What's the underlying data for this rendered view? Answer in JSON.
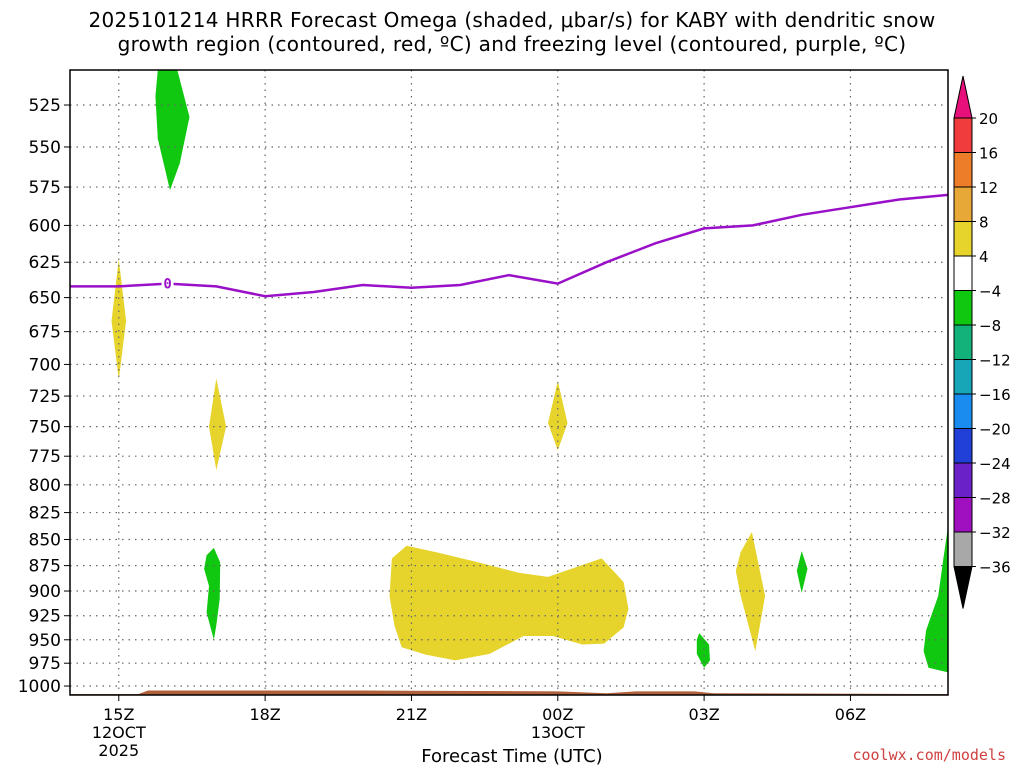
{
  "title": {
    "line1": "2025101214 HRRR Forecast Omega (shaded, μbar/s) for KABY with dendritic snow",
    "line2": "growth region (contoured, red, ºC) and freezing level (contoured, purple, ºC)"
  },
  "watermark": "coolwx.com/models",
  "chart_data": {
    "type": "contour",
    "xlabel": "Forecast Time (UTC)",
    "ylabel": "",
    "x_ticks": [
      {
        "hour": 0,
        "label": "15Z",
        "sub": [
          "12OCT",
          "2025"
        ]
      },
      {
        "hour": 3,
        "label": "18Z",
        "sub": []
      },
      {
        "hour": 6,
        "label": "21Z",
        "sub": []
      },
      {
        "hour": 9,
        "label": "00Z",
        "sub": [
          "13OCT"
        ]
      },
      {
        "hour": 12,
        "label": "03Z",
        "sub": []
      },
      {
        "hour": 15,
        "label": "06Z",
        "sub": []
      }
    ],
    "xlim": [
      -1,
      17
    ],
    "ylim_hPa": [
      1010,
      505
    ],
    "y_ticks": [
      525,
      550,
      575,
      600,
      625,
      650,
      675,
      700,
      725,
      750,
      775,
      800,
      825,
      850,
      875,
      900,
      925,
      950,
      975,
      1000
    ],
    "grid": true,
    "colorbar": {
      "labels": [
        "20",
        "16",
        "12",
        "8",
        "4",
        "−4",
        "−8",
        "−12",
        "−16",
        "−20",
        "−24",
        "−28",
        "−32",
        "−36"
      ],
      "bins": [
        {
          "range": [
            20,
            99
          ],
          "color": "#e8107a"
        },
        {
          "range": [
            16,
            20
          ],
          "color": "#f03c3c"
        },
        {
          "range": [
            12,
            16
          ],
          "color": "#ee7d2a"
        },
        {
          "range": [
            8,
            12
          ],
          "color": "#e8a838"
        },
        {
          "range": [
            4,
            8
          ],
          "color": "#e6d42c"
        },
        {
          "range": [
            -4,
            4
          ],
          "color": "#ffffff"
        },
        {
          "range": [
            -8,
            -4
          ],
          "color": "#10c810"
        },
        {
          "range": [
            -12,
            -8
          ],
          "color": "#12b27a"
        },
        {
          "range": [
            -16,
            -12
          ],
          "color": "#16a6b8"
        },
        {
          "range": [
            -20,
            -16
          ],
          "color": "#1a8cf0"
        },
        {
          "range": [
            -24,
            -20
          ],
          "color": "#2040d8"
        },
        {
          "range": [
            -28,
            -24
          ],
          "color": "#6a22c8"
        },
        {
          "range": [
            -32,
            -28
          ],
          "color": "#a010c0"
        },
        {
          "range": [
            -36,
            -32
          ],
          "color": "#a8a8a8"
        },
        {
          "range": [
            -99,
            -36
          ],
          "color": "#000000"
        }
      ]
    },
    "freezing_level": {
      "label": "0",
      "label_at": [
        1.0,
        640
      ],
      "color": "#9a10c8",
      "points": [
        [
          -1,
          642
        ],
        [
          0,
          642
        ],
        [
          1,
          640
        ],
        [
          2,
          642
        ],
        [
          3,
          649
        ],
        [
          4,
          646
        ],
        [
          5,
          641
        ],
        [
          6,
          643
        ],
        [
          7,
          641
        ],
        [
          8,
          634
        ],
        [
          9,
          640
        ],
        [
          10,
          625
        ],
        [
          11,
          612
        ],
        [
          12,
          602
        ],
        [
          13,
          600
        ],
        [
          14,
          593
        ],
        [
          15,
          588
        ],
        [
          16,
          583
        ],
        [
          17,
          580
        ]
      ]
    },
    "omega_regions": [
      {
        "value": 6,
        "color": "#e6d42c",
        "points": [
          [
            0.0,
            623
          ],
          [
            0.15,
            667
          ],
          [
            0.0,
            712
          ],
          [
            -0.15,
            667
          ]
        ]
      },
      {
        "value": 6,
        "color": "#e6d42c",
        "points": [
          [
            2.0,
            711
          ],
          [
            2.2,
            750
          ],
          [
            2.0,
            787
          ],
          [
            1.85,
            750
          ]
        ]
      },
      {
        "value": 6,
        "color": "#e6d42c",
        "points": [
          [
            9.0,
            713
          ],
          [
            9.2,
            747
          ],
          [
            9.0,
            770
          ],
          [
            8.8,
            747
          ]
        ]
      },
      {
        "value": 6,
        "color": "#e6d42c",
        "points": [
          [
            5.6,
            868
          ],
          [
            5.9,
            856
          ],
          [
            6.5,
            862
          ],
          [
            7.3,
            871
          ],
          [
            8.2,
            882
          ],
          [
            8.8,
            886
          ],
          [
            9.4,
            876
          ],
          [
            9.9,
            868
          ],
          [
            10.35,
            891
          ],
          [
            10.45,
            918
          ],
          [
            10.35,
            937
          ],
          [
            9.95,
            954
          ],
          [
            9.5,
            955
          ],
          [
            8.9,
            946
          ],
          [
            8.3,
            946
          ],
          [
            7.6,
            965
          ],
          [
            6.9,
            972
          ],
          [
            6.3,
            966
          ],
          [
            5.8,
            958
          ],
          [
            5.65,
            935
          ],
          [
            5.55,
            905
          ]
        ]
      },
      {
        "value": 6,
        "color": "#e6d42c",
        "points": [
          [
            12.75,
            862
          ],
          [
            12.98,
            843
          ],
          [
            13.25,
            905
          ],
          [
            13.05,
            962
          ],
          [
            12.75,
            905
          ],
          [
            12.65,
            880
          ]
        ]
      },
      {
        "value": -6,
        "color": "#10c810",
        "points": [
          [
            0.8,
            505
          ],
          [
            1.2,
            505
          ],
          [
            1.45,
            532
          ],
          [
            1.25,
            560
          ],
          [
            1.05,
            577
          ],
          [
            0.8,
            545
          ],
          [
            0.75,
            520
          ]
        ]
      },
      {
        "value": -6,
        "color": "#10c810",
        "points": [
          [
            1.8,
            865
          ],
          [
            1.95,
            858
          ],
          [
            2.08,
            872
          ],
          [
            2.07,
            908
          ],
          [
            2.0,
            935
          ],
          [
            1.95,
            950
          ],
          [
            1.8,
            922
          ],
          [
            1.85,
            895
          ],
          [
            1.75,
            878
          ]
        ]
      },
      {
        "value": -6,
        "color": "#10c810",
        "points": [
          [
            11.9,
            943
          ],
          [
            12.1,
            955
          ],
          [
            12.12,
            972
          ],
          [
            12.0,
            980
          ],
          [
            11.85,
            965
          ],
          [
            11.85,
            950
          ]
        ]
      },
      {
        "value": -6,
        "color": "#10c810",
        "points": [
          [
            14.0,
            861
          ],
          [
            14.12,
            878
          ],
          [
            14.0,
            902
          ],
          [
            13.9,
            880
          ]
        ]
      },
      {
        "value": -6,
        "color": "#10c810",
        "points": [
          [
            17,
            838
          ],
          [
            17,
            985
          ],
          [
            16.6,
            980
          ],
          [
            16.5,
            962
          ],
          [
            16.55,
            940
          ],
          [
            16.8,
            905
          ],
          [
            16.9,
            870
          ]
        ]
      }
    ],
    "ground": {
      "color": "#b0603a",
      "points": [
        [
          -1,
          1009
        ],
        [
          0.4,
          1009
        ],
        [
          0.6,
          1005
        ],
        [
          5.0,
          1005
        ],
        [
          9.0,
          1006
        ],
        [
          10.0,
          1008
        ],
        [
          10.6,
          1006
        ],
        [
          11.8,
          1006
        ],
        [
          12.2,
          1008
        ],
        [
          17,
          1009
        ]
      ]
    }
  }
}
